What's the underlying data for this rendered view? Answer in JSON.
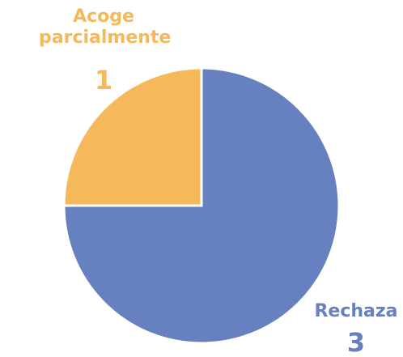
{
  "chart_data": {
    "type": "pie",
    "categories": [
      "Rechaza",
      "Acoge parcialmente"
    ],
    "values": [
      3,
      1
    ],
    "colors": [
      "#6680c0",
      "#f5b95c"
    ]
  }
}
